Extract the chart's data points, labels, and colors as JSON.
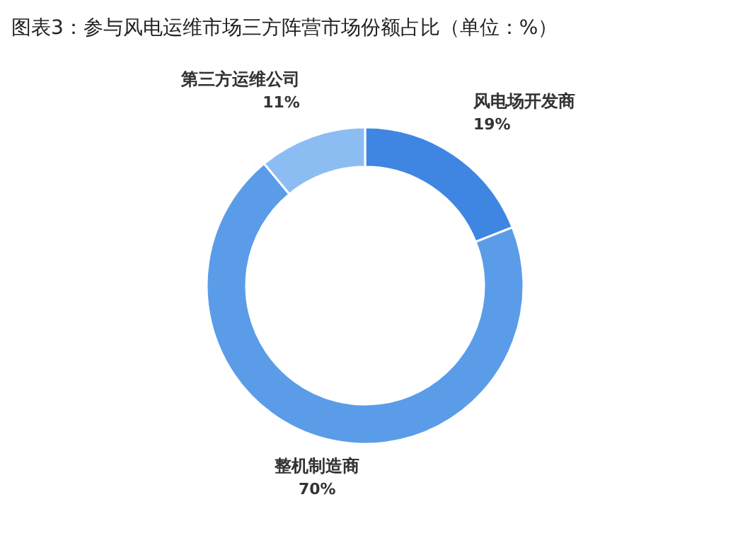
{
  "chart_data": {
    "type": "donut",
    "title": "图表3：参与风电运维市场三方阵营市场份额占比（单位：%）",
    "categories": [
      "风电场开发商",
      "整机制造商",
      "第三方运维公司"
    ],
    "values": [
      19,
      70,
      11
    ],
    "colors": [
      "#3f86e2",
      "#5b9ce9",
      "#8cbdf2"
    ],
    "value_labels": [
      "19%",
      "70%",
      "11%"
    ]
  }
}
